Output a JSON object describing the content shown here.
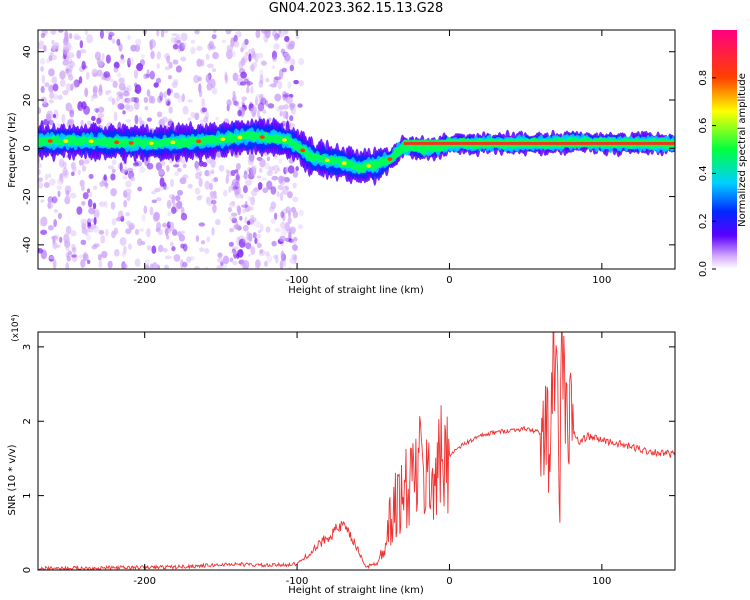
{
  "title": "GN04.2023.362.15.13.G28",
  "chart_data": [
    {
      "type": "heatmap",
      "xlabel": "Height of straight line (km)",
      "ylabel": "Frequency (Hz)",
      "xlim": [
        -270,
        148
      ],
      "ylim": [
        -50,
        49
      ],
      "xticks": [
        -200,
        -100,
        0,
        100
      ],
      "yticks": [
        -40,
        -20,
        0,
        20,
        40
      ],
      "colorbar": {
        "label": "Normalized spectral amplitude",
        "range": [
          0,
          1
        ],
        "ticks": [
          0.0,
          0.2,
          0.4,
          0.6,
          0.8
        ],
        "tick_labels": [
          "0.0",
          "0.2",
          "0.4",
          "0.6",
          "0.8"
        ]
      },
      "ridge": {
        "x": [
          -270,
          -240,
          -200,
          -160,
          -130,
          -110,
          -100,
          -90,
          -80,
          -70,
          -60,
          -50,
          -40,
          -30,
          -20,
          -10,
          0,
          20,
          50,
          70,
          80,
          100,
          148
        ],
        "y": [
          3,
          3,
          2,
          3,
          5,
          4,
          1,
          -4,
          -5,
          -6,
          -8,
          -7,
          -5,
          1,
          0,
          0,
          2,
          2,
          2,
          2,
          3,
          2,
          2
        ]
      },
      "scatter_bands_x": [
        -265,
        -255,
        -245,
        -235,
        -225,
        -210,
        -195,
        -180,
        -160,
        -140,
        -135,
        -125,
        -110,
        -105
      ]
    },
    {
      "type": "line",
      "xlabel": "Height of straight line (km)",
      "ylabel": "SNR (10 * v/v)",
      "scale_label": "(x10⁴)",
      "xlim": [
        -270,
        148
      ],
      "ylim": [
        0,
        3.2
      ],
      "xticks": [
        -200,
        -100,
        0,
        100
      ],
      "yticks": [
        0,
        1,
        2,
        3
      ],
      "color": "#ee3333",
      "series": [
        {
          "x": [
            -270,
            -220,
            -180,
            -140,
            -120,
            -100,
            -90,
            -80,
            -70,
            -62,
            -55,
            -50,
            -45,
            -40,
            -35,
            -30,
            -25,
            -20,
            -15,
            -10,
            -5,
            0,
            10,
            20,
            30,
            40,
            50,
            60,
            62,
            65,
            68,
            70,
            72,
            74,
            76,
            78,
            80,
            85,
            90,
            100,
            110,
            120,
            130,
            140,
            148
          ],
          "y": [
            0.02,
            0.03,
            0.04,
            0.08,
            0.06,
            0.08,
            0.25,
            0.45,
            0.6,
            0.35,
            0.05,
            0.06,
            0.2,
            0.6,
            0.9,
            1.0,
            1.2,
            1.4,
            1.2,
            1.3,
            1.45,
            1.55,
            1.7,
            1.8,
            1.85,
            1.88,
            1.9,
            1.85,
            1.5,
            1.9,
            2.8,
            3.0,
            0.7,
            3.2,
            2.4,
            1.8,
            1.95,
            1.7,
            1.8,
            1.75,
            1.7,
            1.65,
            1.6,
            1.57,
            1.55
          ]
        }
      ]
    }
  ]
}
